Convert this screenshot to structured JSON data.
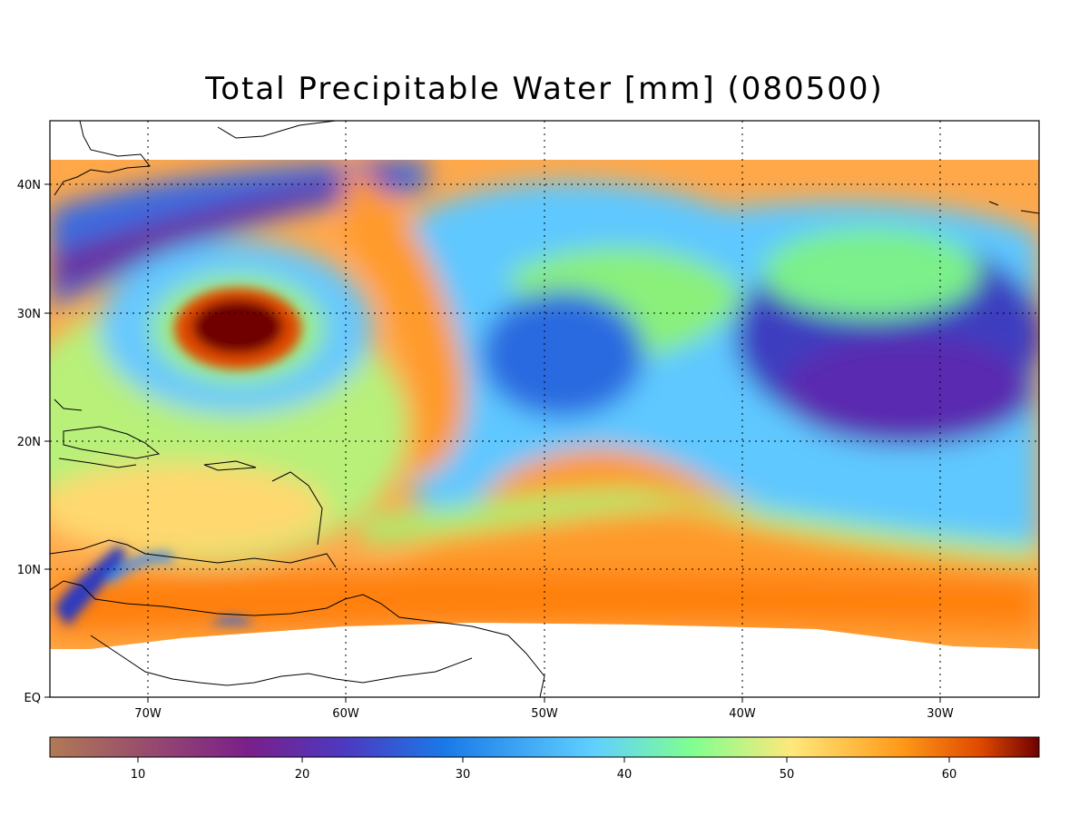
{
  "title": "Total Precipitable Water [mm]  (080500)",
  "map": {
    "lat_labels": [
      "40N",
      "30N",
      "20N",
      "10N",
      "EQ"
    ],
    "lon_labels": [
      "70W",
      "60W",
      "50W",
      "40W",
      "30W"
    ],
    "lat_range": [
      0,
      45
    ],
    "lon_range": [
      -75,
      -25
    ],
    "grid": "dotted"
  },
  "colorbar": {
    "tick_labels": [
      "10",
      "20",
      "30",
      "40",
      "50",
      "60"
    ],
    "range": [
      5,
      65
    ],
    "colors": [
      "#b07a55",
      "#9a4f6b",
      "#7a1f8a",
      "#4b3ac2",
      "#1a7ae8",
      "#5fd0ff",
      "#80ff90",
      "#ffe87a",
      "#ff9a1a",
      "#e04a00",
      "#700000"
    ]
  }
}
